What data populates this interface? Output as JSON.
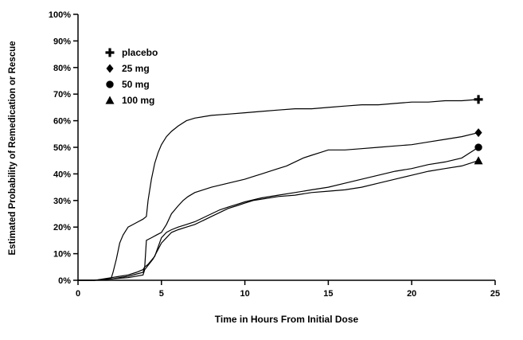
{
  "chart_data": {
    "type": "line",
    "title": "",
    "xlabel": "Time in Hours From Initial Dose",
    "ylabel": "Estimated Probability of Remedication or Rescue",
    "xlim": [
      0,
      25
    ],
    "ylim": [
      0,
      100
    ],
    "xticks": [
      0,
      5,
      10,
      15,
      20,
      25
    ],
    "yticks": [
      0,
      10,
      20,
      30,
      40,
      50,
      60,
      70,
      80,
      90,
      100
    ],
    "ytick_suffix": "%",
    "grid": false,
    "legend_position": "upper-left-inside",
    "line_color": "#000000",
    "background_color": "#ffffff",
    "series": [
      {
        "name": "placebo",
        "marker": "plus",
        "end_value_pct": 68,
        "points": [
          [
            0,
            0
          ],
          [
            1,
            0
          ],
          [
            1.8,
            0.5
          ],
          [
            2,
            1
          ],
          [
            2.1,
            3
          ],
          [
            2.3,
            8
          ],
          [
            2.5,
            14
          ],
          [
            2.7,
            17
          ],
          [
            3,
            20
          ],
          [
            3.3,
            21
          ],
          [
            3.6,
            22
          ],
          [
            3.9,
            23
          ],
          [
            4.1,
            24
          ],
          [
            4.2,
            30
          ],
          [
            4.4,
            38
          ],
          [
            4.6,
            44
          ],
          [
            4.8,
            48
          ],
          [
            5,
            51
          ],
          [
            5.3,
            54
          ],
          [
            5.6,
            56
          ],
          [
            6,
            58
          ],
          [
            6.5,
            60
          ],
          [
            7,
            61
          ],
          [
            8,
            62
          ],
          [
            9,
            62.5
          ],
          [
            10,
            63
          ],
          [
            11,
            63.5
          ],
          [
            12,
            64
          ],
          [
            13,
            64.5
          ],
          [
            14,
            64.5
          ],
          [
            15,
            65
          ],
          [
            16,
            65.5
          ],
          [
            17,
            66
          ],
          [
            18,
            66
          ],
          [
            19,
            66.5
          ],
          [
            20,
            67
          ],
          [
            21,
            67
          ],
          [
            22,
            67.5
          ],
          [
            23,
            67.5
          ],
          [
            24,
            68
          ]
        ]
      },
      {
        "name": "25 mg",
        "marker": "diamond",
        "end_value_pct": 55.5,
        "points": [
          [
            0,
            0
          ],
          [
            1,
            0
          ],
          [
            2,
            1
          ],
          [
            2.5,
            1.5
          ],
          [
            3,
            2
          ],
          [
            3.5,
            3
          ],
          [
            3.9,
            4
          ],
          [
            4,
            5
          ],
          [
            4.1,
            15
          ],
          [
            4.4,
            16
          ],
          [
            4.7,
            17
          ],
          [
            5,
            18
          ],
          [
            5.3,
            21
          ],
          [
            5.6,
            25
          ],
          [
            6,
            28
          ],
          [
            6.3,
            30
          ],
          [
            6.6,
            31.5
          ],
          [
            7,
            33
          ],
          [
            7.5,
            34
          ],
          [
            8,
            35
          ],
          [
            9,
            36.5
          ],
          [
            10,
            38
          ],
          [
            10.5,
            39
          ],
          [
            11,
            40
          ],
          [
            11.5,
            41
          ],
          [
            12,
            42
          ],
          [
            12.5,
            43
          ],
          [
            13,
            44.5
          ],
          [
            13.5,
            46
          ],
          [
            14,
            47
          ],
          [
            14.5,
            48
          ],
          [
            15,
            49
          ],
          [
            16,
            49
          ],
          [
            17,
            49.5
          ],
          [
            18,
            50
          ],
          [
            19,
            50.5
          ],
          [
            20,
            51
          ],
          [
            21,
            52
          ],
          [
            22,
            53
          ],
          [
            23,
            54
          ],
          [
            24,
            55.5
          ]
        ]
      },
      {
        "name": "50 mg",
        "marker": "circle",
        "end_value_pct": 50,
        "points": [
          [
            0,
            0
          ],
          [
            1,
            0
          ],
          [
            2,
            0.5
          ],
          [
            3,
            1.5
          ],
          [
            3.9,
            3
          ],
          [
            4,
            5
          ],
          [
            4.2,
            6
          ],
          [
            4.6,
            9
          ],
          [
            5,
            16
          ],
          [
            5.3,
            18
          ],
          [
            5.6,
            19
          ],
          [
            6,
            20
          ],
          [
            6.5,
            21
          ],
          [
            7,
            22
          ],
          [
            7.5,
            23.5
          ],
          [
            8,
            25
          ],
          [
            8.5,
            26.5
          ],
          [
            9,
            27.5
          ],
          [
            9.5,
            28.5
          ],
          [
            10,
            29.5
          ],
          [
            11,
            31
          ],
          [
            12,
            32
          ],
          [
            13,
            33
          ],
          [
            14,
            34
          ],
          [
            15,
            35
          ],
          [
            16,
            36.5
          ],
          [
            17,
            38
          ],
          [
            18,
            39.5
          ],
          [
            19,
            41
          ],
          [
            20,
            42
          ],
          [
            21,
            43.5
          ],
          [
            22,
            44.5
          ],
          [
            23,
            46
          ],
          [
            24,
            50
          ]
        ]
      },
      {
        "name": "100 mg",
        "marker": "triangle",
        "end_value_pct": 45,
        "points": [
          [
            0,
            0
          ],
          [
            1,
            0
          ],
          [
            2,
            0.5
          ],
          [
            3,
            1
          ],
          [
            3.9,
            2
          ],
          [
            4,
            4
          ],
          [
            4.5,
            8
          ],
          [
            5,
            14
          ],
          [
            5.3,
            16
          ],
          [
            5.6,
            18
          ],
          [
            6,
            19
          ],
          [
            6.5,
            20
          ],
          [
            7,
            21
          ],
          [
            7.5,
            22.5
          ],
          [
            8,
            24
          ],
          [
            8.5,
            25.5
          ],
          [
            9,
            27
          ],
          [
            9.5,
            28
          ],
          [
            10,
            29
          ],
          [
            10.5,
            30
          ],
          [
            11,
            30.5
          ],
          [
            12,
            31.5
          ],
          [
            13,
            32
          ],
          [
            14,
            33
          ],
          [
            15,
            33.5
          ],
          [
            16,
            34
          ],
          [
            17,
            35
          ],
          [
            18,
            36.5
          ],
          [
            19,
            38
          ],
          [
            20,
            39.5
          ],
          [
            21,
            41
          ],
          [
            22,
            42
          ],
          [
            23,
            43
          ],
          [
            24,
            45
          ]
        ]
      }
    ]
  }
}
